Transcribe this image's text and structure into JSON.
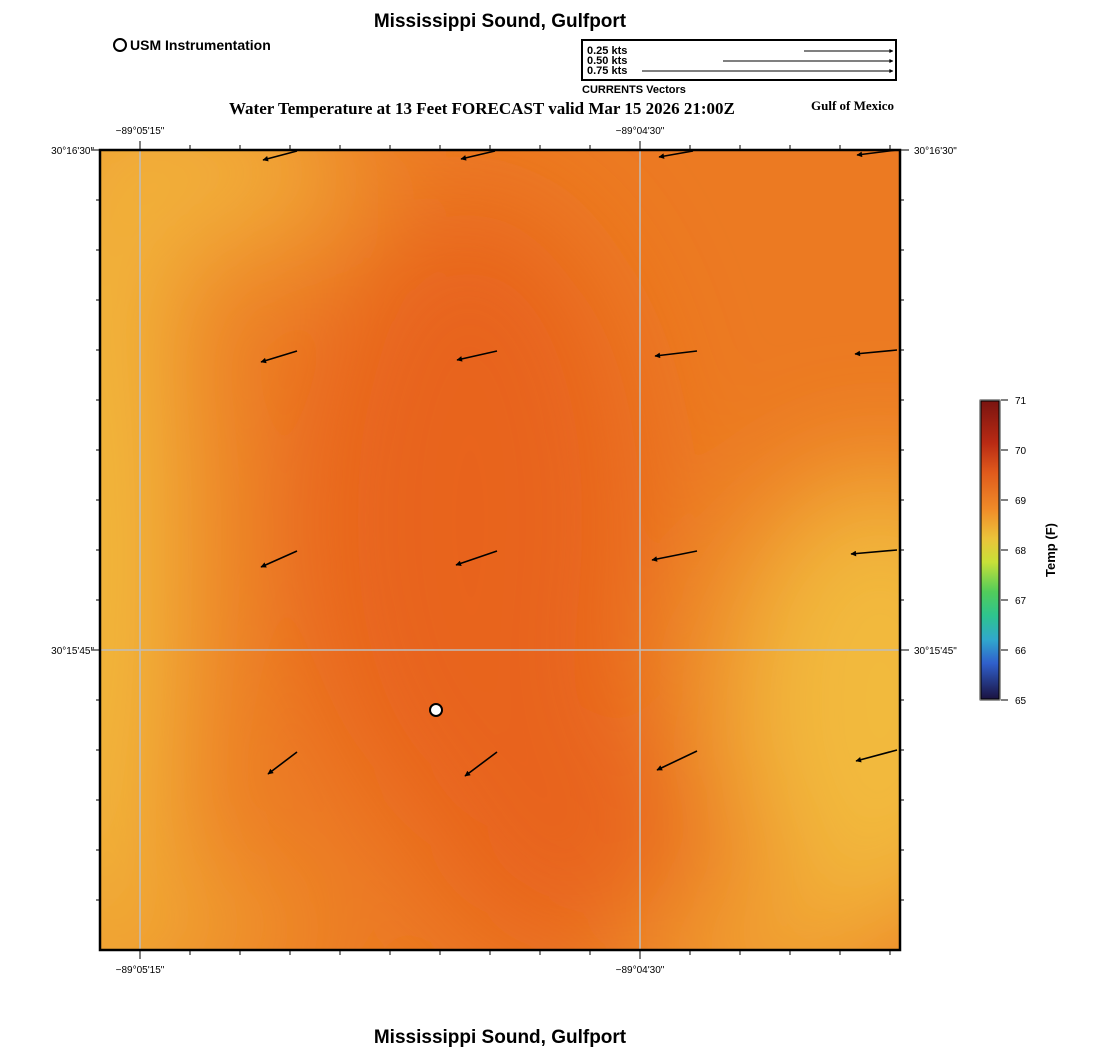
{
  "titles": {
    "top": "Mississippi Sound, Gulfport",
    "bottom": "Mississippi Sound, Gulfport",
    "map_title": "Water Temperature at 13 Feet FORECAST valid Mar 15 2026 21:00Z",
    "region": "Gulf of Mexico"
  },
  "station_legend": {
    "label": "USM Instrumentation"
  },
  "vector_legend": {
    "rows": [
      {
        "label": "0.25 kts",
        "speed": 0.25
      },
      {
        "label": "0.50 kts",
        "speed": 0.5
      },
      {
        "label": "0.75 kts",
        "speed": 0.75
      }
    ],
    "caption": "CURRENTS Vectors"
  },
  "axes": {
    "lon_labels": [
      "−89°05'15\"",
      "−89°04'30\""
    ],
    "lat_labels": [
      "30°16'30\"",
      "30°15'45\""
    ]
  },
  "colorbar": {
    "title": "Temp (F)",
    "min": 65,
    "max": 71,
    "ticks": [
      "71",
      "70",
      "69",
      "68",
      "67",
      "66",
      "65"
    ],
    "colors": [
      "#7a1410",
      "#e05a1c",
      "#ecc23a",
      "#c8e038",
      "#2ec48e",
      "#3060cc",
      "#1a1240"
    ]
  },
  "field_colors": {
    "warm": "#e8661f",
    "cool": "#f2b83b"
  },
  "station": {
    "name": "USM Instrumentation"
  }
}
